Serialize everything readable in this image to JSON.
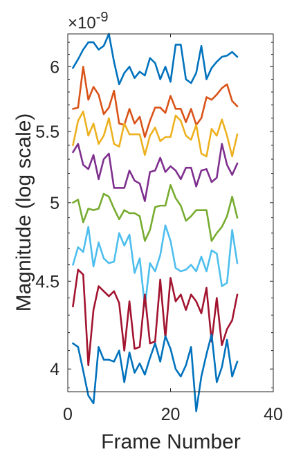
{
  "chart_data": {
    "type": "line",
    "title": "",
    "xlabel": "Frame Number",
    "ylabel": "Magnitude (log scale)",
    "exponent_label": "×10",
    "exponent_power": "-9",
    "xlim": [
      0,
      40
    ],
    "ylim": [
      3.88,
      6.27
    ],
    "yscale": "log",
    "x_ticks": [
      0,
      20,
      40
    ],
    "x_tick_labels": [
      "0",
      "20",
      "40"
    ],
    "y_ticks": [
      4,
      4.5,
      5,
      5.5,
      6
    ],
    "y_tick_labels": [
      "4",
      "4.5",
      "5",
      "5.5",
      "6"
    ],
    "grid": false,
    "x": [
      1,
      2,
      3,
      4,
      5,
      6,
      7,
      8,
      9,
      10,
      11,
      12,
      13,
      14,
      15,
      16,
      17,
      18,
      19,
      20,
      21,
      22,
      23,
      24,
      25,
      26,
      27,
      28,
      29,
      30,
      31,
      32,
      33
    ],
    "series": [
      {
        "color": "#0072BD",
        "values": [
          5.99,
          6.06,
          6.14,
          6.2,
          6.2,
          6.14,
          6.17,
          6.27,
          6.04,
          5.86,
          5.95,
          6.0,
          5.91,
          5.96,
          5.93,
          6.07,
          6.03,
          5.9,
          6.0,
          5.88,
          6.18,
          6.18,
          5.9,
          5.87,
          5.95,
          6.17,
          5.9,
          5.99,
          6.04,
          6.08,
          6.09,
          6.12,
          6.08
        ]
      },
      {
        "color": "#D95319",
        "values": [
          5.67,
          5.68,
          6.0,
          5.74,
          5.84,
          5.78,
          5.63,
          5.68,
          5.81,
          5.56,
          5.55,
          5.67,
          5.56,
          5.61,
          5.46,
          5.58,
          5.68,
          5.68,
          5.64,
          5.77,
          5.67,
          5.67,
          5.57,
          5.67,
          5.55,
          5.6,
          5.76,
          5.74,
          5.78,
          5.83,
          5.86,
          5.73,
          5.69
        ]
      },
      {
        "color": "#EDB120",
        "values": [
          5.4,
          5.58,
          5.65,
          5.47,
          5.56,
          5.41,
          5.47,
          5.6,
          5.41,
          5.39,
          5.56,
          5.48,
          5.48,
          5.48,
          5.33,
          5.47,
          5.53,
          5.43,
          5.46,
          5.46,
          5.62,
          5.58,
          5.47,
          5.44,
          5.55,
          5.34,
          5.32,
          5.52,
          5.47,
          5.59,
          5.47,
          5.32,
          5.48
        ]
      },
      {
        "color": "#7E2F8E",
        "values": [
          5.35,
          5.41,
          5.26,
          5.23,
          5.33,
          5.16,
          5.3,
          5.34,
          5.1,
          5.1,
          5.1,
          5.22,
          5.15,
          5.13,
          5.01,
          5.21,
          5.22,
          5.31,
          5.21,
          5.25,
          5.22,
          5.16,
          5.24,
          5.24,
          5.11,
          5.22,
          5.23,
          5.14,
          5.17,
          5.41,
          5.26,
          5.19,
          5.27
        ]
      },
      {
        "color": "#77AC30",
        "values": [
          5.0,
          5.02,
          4.87,
          4.96,
          4.95,
          4.96,
          5.06,
          5.04,
          4.96,
          4.89,
          4.95,
          4.93,
          4.93,
          4.91,
          4.75,
          4.82,
          4.97,
          4.98,
          4.98,
          5.12,
          5.03,
          4.98,
          4.88,
          4.91,
          4.95,
          4.95,
          4.95,
          4.75,
          4.8,
          4.84,
          4.91,
          5.04,
          4.9
        ]
      },
      {
        "color": "#4DBEEE",
        "values": [
          4.6,
          4.71,
          4.68,
          4.84,
          4.59,
          4.74,
          4.64,
          4.61,
          4.62,
          4.8,
          4.72,
          4.79,
          4.55,
          4.64,
          4.35,
          4.61,
          4.56,
          4.66,
          4.85,
          4.75,
          4.58,
          4.56,
          4.57,
          4.6,
          4.56,
          4.65,
          4.56,
          4.69,
          4.67,
          4.47,
          4.49,
          4.82,
          4.61
        ]
      },
      {
        "color": "#A2142F",
        "values": [
          4.35,
          4.57,
          4.54,
          4.02,
          4.33,
          4.47,
          4.44,
          4.41,
          4.44,
          4.37,
          4.1,
          4.38,
          4.11,
          4.12,
          4.42,
          4.14,
          4.15,
          4.51,
          4.17,
          4.52,
          4.38,
          4.42,
          4.33,
          4.42,
          4.38,
          4.31,
          4.46,
          4.15,
          4.4,
          4.13,
          4.22,
          4.27,
          4.42
        ]
      },
      {
        "color": "#0072BD",
        "values": [
          4.14,
          4.12,
          3.99,
          3.86,
          3.82,
          4.12,
          4.05,
          4.05,
          4.04,
          4.1,
          3.93,
          4.09,
          3.98,
          4.03,
          3.97,
          4.06,
          4.14,
          4.04,
          4.18,
          4.11,
          4.0,
          3.96,
          4.02,
          4.12,
          3.78,
          3.96,
          4.08,
          4.19,
          3.93,
          4.01,
          4.16,
          3.96,
          4.04
        ]
      }
    ]
  }
}
